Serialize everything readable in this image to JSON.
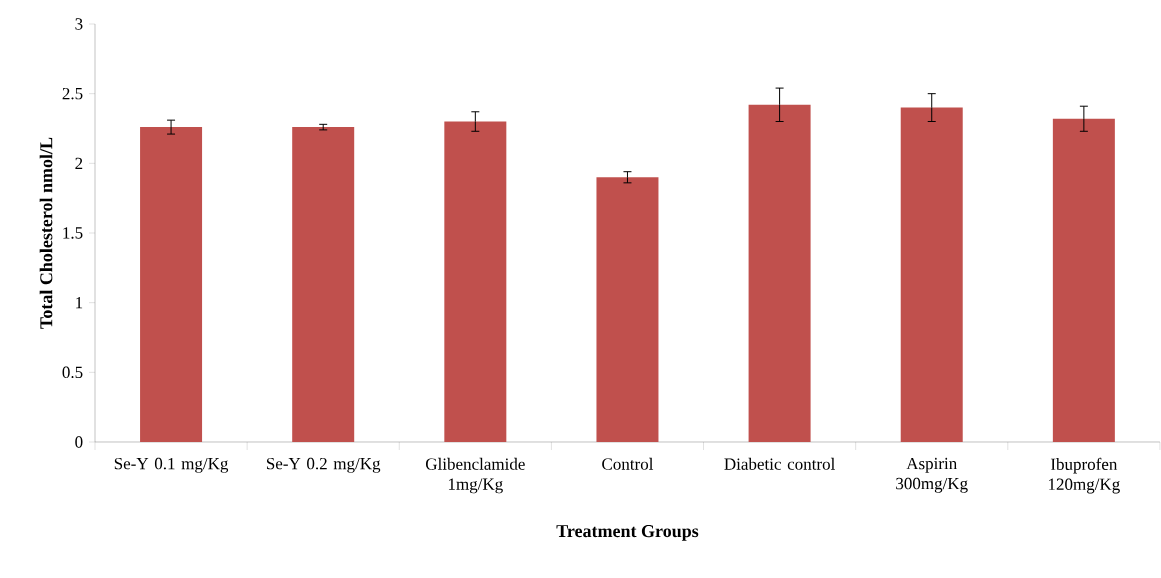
{
  "chart_data": {
    "type": "bar",
    "xlabel": "Treatment Groups",
    "ylabel": "Total Cholesterol nmol/L",
    "categories": [
      "Se-Y 0.1 mg/Kg",
      "Se-Y 0.2 mg/Kg",
      "Glibenclamide 1mg/Kg",
      "Control",
      "Diabetic control",
      "Aspirin 300mg/Kg",
      "Ibuprofen 120mg/Kg"
    ],
    "values": [
      2.26,
      2.26,
      2.3,
      1.9,
      2.42,
      2.4,
      2.32
    ],
    "errors": [
      0.05,
      0.02,
      0.07,
      0.04,
      0.12,
      0.1,
      0.09
    ],
    "color": "#c0504d",
    "ylim": [
      0,
      3
    ],
    "yticks": [
      0,
      0.5,
      1,
      1.5,
      2,
      2.5,
      3
    ],
    "grid": false
  }
}
